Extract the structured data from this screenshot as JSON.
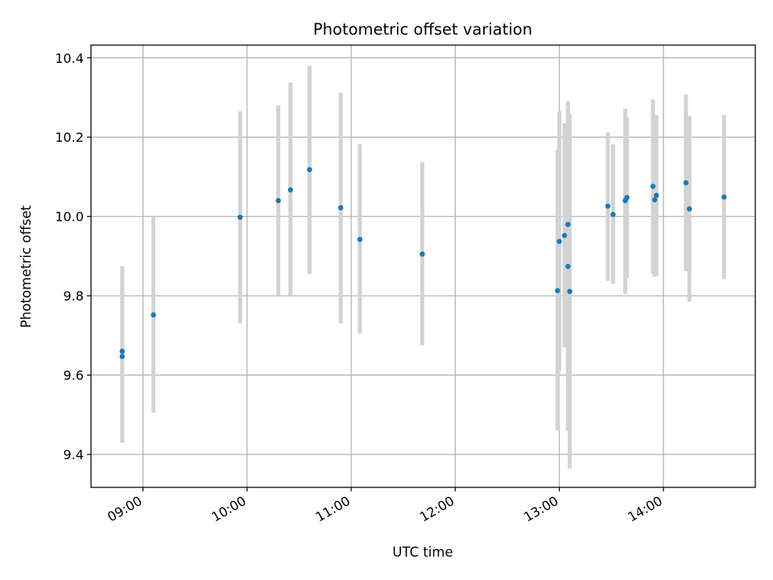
{
  "chart_data": {
    "type": "scatter",
    "title": "Photometric offset variation",
    "xlabel": "UTC time",
    "ylabel": "Photometric offset",
    "x_format": "HH:MM",
    "xlim": [
      "08:30",
      "14:53"
    ],
    "ylim": [
      9.317,
      10.432
    ],
    "grid": true,
    "x_ticks": [
      "09:00",
      "10:00",
      "11:00",
      "12:00",
      "13:00",
      "14:00"
    ],
    "y_ticks": [
      9.4,
      9.6,
      9.8,
      10.0,
      10.2,
      10.4
    ],
    "y_tick_labels": [
      "9.4",
      "9.6",
      "9.8",
      "10.0",
      "10.2",
      "10.4"
    ],
    "colors": {
      "points": "#1f77b4",
      "error_bars": "#d3d3d3",
      "grid": "#b0b0b0"
    },
    "points": [
      {
        "x": "08:48",
        "y": 9.66,
        "err_low": 9.43,
        "err_high": 9.875
      },
      {
        "x": "08:48",
        "y": 9.647,
        "err_low": 9.43,
        "err_high": 9.865
      },
      {
        "x": "09:06",
        "y": 9.752,
        "err_low": 9.505,
        "err_high": 10.0
      },
      {
        "x": "09:56",
        "y": 9.998,
        "err_low": 9.73,
        "err_high": 10.265
      },
      {
        "x": "10:18",
        "y": 10.04,
        "err_low": 9.8,
        "err_high": 10.28
      },
      {
        "x": "10:25",
        "y": 10.067,
        "err_low": 9.8,
        "err_high": 10.338
      },
      {
        "x": "10:36",
        "y": 10.118,
        "err_low": 9.855,
        "err_high": 10.38
      },
      {
        "x": "10:54",
        "y": 10.022,
        "err_low": 9.73,
        "err_high": 10.312
      },
      {
        "x": "11:05",
        "y": 9.942,
        "err_low": 9.705,
        "err_high": 10.182
      },
      {
        "x": "11:41",
        "y": 9.905,
        "err_low": 9.675,
        "err_high": 10.137
      },
      {
        "x": "12:59",
        "y": 9.813,
        "err_low": 9.46,
        "err_high": 10.168
      },
      {
        "x": "13:00",
        "y": 9.937,
        "err_low": 9.61,
        "err_high": 10.265
      },
      {
        "x": "13:03",
        "y": 9.952,
        "err_low": 9.67,
        "err_high": 10.235
      },
      {
        "x": "13:05",
        "y": 9.98,
        "err_low": 9.67,
        "err_high": 10.29
      },
      {
        "x": "13:05",
        "y": 9.874,
        "err_low": 9.46,
        "err_high": 10.288
      },
      {
        "x": "13:06",
        "y": 9.811,
        "err_low": 9.365,
        "err_high": 10.258
      },
      {
        "x": "13:28",
        "y": 10.026,
        "err_low": 9.838,
        "err_high": 10.212
      },
      {
        "x": "13:31",
        "y": 10.005,
        "err_low": 9.83,
        "err_high": 10.182
      },
      {
        "x": "13:38",
        "y": 10.04,
        "err_low": 9.805,
        "err_high": 10.272
      },
      {
        "x": "13:39",
        "y": 10.048,
        "err_low": 9.845,
        "err_high": 10.25
      },
      {
        "x": "13:54",
        "y": 10.076,
        "err_low": 9.855,
        "err_high": 10.295
      },
      {
        "x": "13:55",
        "y": 10.042,
        "err_low": 9.848,
        "err_high": 10.24
      },
      {
        "x": "13:56",
        "y": 10.053,
        "err_low": 9.85,
        "err_high": 10.255
      },
      {
        "x": "14:13",
        "y": 10.085,
        "err_low": 9.862,
        "err_high": 10.307
      },
      {
        "x": "14:15",
        "y": 10.019,
        "err_low": 9.785,
        "err_high": 10.253
      },
      {
        "x": "14:35",
        "y": 10.049,
        "err_low": 9.842,
        "err_high": 10.256
      }
    ]
  }
}
